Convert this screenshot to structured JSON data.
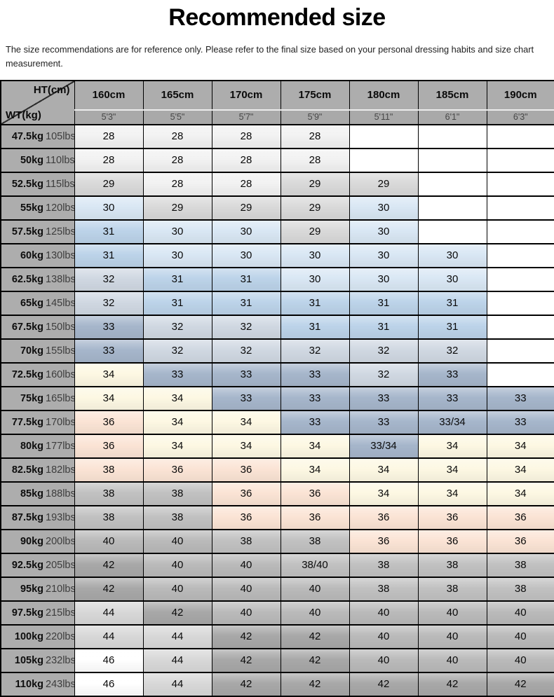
{
  "page": {
    "title": "Recommended size",
    "subtitle": "The size recommendations are for reference only. Please refer to the final size based on your personal dressing habits and size chart measurement."
  },
  "corner": {
    "top": "HT(cm)",
    "bottom": "WT(kg)"
  },
  "palette": {
    "s28": "#f2f2f2",
    "s29": "#d9d9d9",
    "s30": "#d9e7f4",
    "s31": "#bcd3e9",
    "s32": "#d0d8e2",
    "s33": "#a6b6cb",
    "s34": "#fdf8e3",
    "s36": "#fbe4d5",
    "g38": "#c1c1c1",
    "g40": "#bababa",
    "g42": "#a8a8a8",
    "g44": "#d8d8d8",
    "s46": "#ffffff",
    "header_gray": "#adadad"
  },
  "chart_data": {
    "type": "table",
    "title": "Recommended size",
    "columns_axis_label": "HT(cm)",
    "rows_axis_label": "WT(kg)",
    "height_headers_cm": [
      "160cm",
      "165cm",
      "170cm",
      "175cm",
      "180cm",
      "185cm",
      "190cm"
    ],
    "height_headers_ft": [
      "5'3\"",
      "5'5\"",
      "5'7\"",
      "5'9\"",
      "5'11\"",
      "6'1\"",
      "6'3\""
    ],
    "weight_rows": [
      {
        "kg": "47.5kg",
        "lbs": "105lbs",
        "sizes": [
          "28",
          "28",
          "28",
          "28",
          "",
          "",
          ""
        ],
        "colors": [
          "s28",
          "s28",
          "s28",
          "s28",
          "",
          "",
          ""
        ]
      },
      {
        "kg": "50kg",
        "lbs": "110lbs",
        "sizes": [
          "28",
          "28",
          "28",
          "28",
          "",
          "",
          ""
        ],
        "colors": [
          "s28",
          "s28",
          "s28",
          "s28",
          "",
          "",
          ""
        ]
      },
      {
        "kg": "52.5kg",
        "lbs": "115lbs",
        "sizes": [
          "29",
          "28",
          "28",
          "29",
          "29",
          "",
          ""
        ],
        "colors": [
          "s29",
          "s28",
          "s28",
          "s29",
          "s29",
          "",
          ""
        ]
      },
      {
        "kg": "55kg",
        "lbs": "120lbs",
        "sizes": [
          "30",
          "29",
          "29",
          "29",
          "30",
          "",
          ""
        ],
        "colors": [
          "s30",
          "s29",
          "s29",
          "s29",
          "s30",
          "",
          ""
        ]
      },
      {
        "kg": "57.5kg",
        "lbs": "125lbs",
        "sizes": [
          "31",
          "30",
          "30",
          "29",
          "30",
          "",
          ""
        ],
        "colors": [
          "s31",
          "s30",
          "s30",
          "s29",
          "s30",
          "",
          ""
        ]
      },
      {
        "kg": "60kg",
        "lbs": "130lbs",
        "sizes": [
          "31",
          "30",
          "30",
          "30",
          "30",
          "30",
          ""
        ],
        "colors": [
          "s31",
          "s30",
          "s30",
          "s30",
          "s30",
          "s30",
          ""
        ]
      },
      {
        "kg": "62.5kg",
        "lbs": "138lbs",
        "sizes": [
          "32",
          "31",
          "31",
          "30",
          "30",
          "30",
          ""
        ],
        "colors": [
          "s32",
          "s31",
          "s31",
          "s30",
          "s30",
          "s30",
          ""
        ]
      },
      {
        "kg": "65kg",
        "lbs": "145lbs",
        "sizes": [
          "32",
          "31",
          "31",
          "31",
          "31",
          "31",
          ""
        ],
        "colors": [
          "s32",
          "s31",
          "s31",
          "s31",
          "s31",
          "s31",
          ""
        ]
      },
      {
        "kg": "67.5kg",
        "lbs": "150lbs",
        "sizes": [
          "33",
          "32",
          "32",
          "31",
          "31",
          "31",
          ""
        ],
        "colors": [
          "s33",
          "s32",
          "s32",
          "s31",
          "s31",
          "s31",
          ""
        ]
      },
      {
        "kg": "70kg",
        "lbs": "155lbs",
        "sizes": [
          "33",
          "32",
          "32",
          "32",
          "32",
          "32",
          ""
        ],
        "colors": [
          "s33",
          "s32",
          "s32",
          "s32",
          "s32",
          "s32",
          ""
        ]
      },
      {
        "kg": "72.5kg",
        "lbs": "160lbs",
        "sizes": [
          "34",
          "33",
          "33",
          "33",
          "32",
          "33",
          ""
        ],
        "colors": [
          "s34",
          "s33",
          "s33",
          "s33",
          "s32",
          "s33",
          ""
        ]
      },
      {
        "kg": "75kg",
        "lbs": "165lbs",
        "sizes": [
          "34",
          "34",
          "33",
          "33",
          "33",
          "33",
          "33"
        ],
        "colors": [
          "s34",
          "s34",
          "s33",
          "s33",
          "s33",
          "s33",
          "s33"
        ]
      },
      {
        "kg": "77.5kg",
        "lbs": "170lbs",
        "sizes": [
          "36",
          "34",
          "34",
          "33",
          "33",
          "33/34",
          "33"
        ],
        "colors": [
          "s36",
          "s34",
          "s34",
          "s33",
          "s33",
          "s33",
          "s33"
        ]
      },
      {
        "kg": "80kg",
        "lbs": "177lbs",
        "sizes": [
          "36",
          "34",
          "34",
          "34",
          "33/34",
          "34",
          "34"
        ],
        "colors": [
          "s36",
          "s34",
          "s34",
          "s34",
          "s33",
          "s34",
          "s34"
        ]
      },
      {
        "kg": "82.5kg",
        "lbs": "182lbs",
        "sizes": [
          "38",
          "36",
          "36",
          "34",
          "34",
          "34",
          "34"
        ],
        "colors": [
          "s36",
          "s36",
          "s36",
          "s34",
          "s34",
          "s34",
          "s34"
        ]
      },
      {
        "kg": "85kg",
        "lbs": "188lbs",
        "sizes": [
          "38",
          "38",
          "36",
          "36",
          "34",
          "34",
          "34"
        ],
        "colors": [
          "g38",
          "g38",
          "s36",
          "s36",
          "s34",
          "s34",
          "s34"
        ]
      },
      {
        "kg": "87.5kg",
        "lbs": "193lbs",
        "sizes": [
          "38",
          "38",
          "36",
          "36",
          "36",
          "36",
          "36"
        ],
        "colors": [
          "g38",
          "g38",
          "s36",
          "s36",
          "s36",
          "s36",
          "s36"
        ]
      },
      {
        "kg": "90kg",
        "lbs": "200lbs",
        "sizes": [
          "40",
          "40",
          "38",
          "38",
          "36",
          "36",
          "36"
        ],
        "colors": [
          "g40",
          "g40",
          "g38",
          "g38",
          "s36",
          "s36",
          "s36"
        ]
      },
      {
        "kg": "92.5kg",
        "lbs": "205lbs",
        "sizes": [
          "42",
          "40",
          "40",
          "38/40",
          "38",
          "38",
          "38"
        ],
        "colors": [
          "g42",
          "g40",
          "g40",
          "g38",
          "g38",
          "g38",
          "g38"
        ]
      },
      {
        "kg": "95kg",
        "lbs": "210lbs",
        "sizes": [
          "42",
          "40",
          "40",
          "40",
          "38",
          "38",
          "38"
        ],
        "colors": [
          "g42",
          "g40",
          "g40",
          "g40",
          "g38",
          "g38",
          "g38"
        ]
      },
      {
        "kg": "97.5kg",
        "lbs": "215lbs",
        "sizes": [
          "44",
          "42",
          "40",
          "40",
          "40",
          "40",
          "40"
        ],
        "colors": [
          "g44",
          "g42",
          "g40",
          "g40",
          "g40",
          "g40",
          "g40"
        ]
      },
      {
        "kg": "100kg",
        "lbs": "220lbs",
        "sizes": [
          "44",
          "44",
          "42",
          "42",
          "40",
          "40",
          "40"
        ],
        "colors": [
          "g44",
          "g44",
          "g42",
          "g42",
          "g40",
          "g40",
          "g40"
        ]
      },
      {
        "kg": "105kg",
        "lbs": "232lbs",
        "sizes": [
          "46",
          "44",
          "42",
          "42",
          "40",
          "40",
          "40"
        ],
        "colors": [
          "s46",
          "g44",
          "g42",
          "g42",
          "g40",
          "g40",
          "g40"
        ]
      },
      {
        "kg": "110kg",
        "lbs": "243lbs",
        "sizes": [
          "46",
          "44",
          "42",
          "42",
          "42",
          "42",
          "42"
        ],
        "colors": [
          "s46",
          "g44",
          "g42",
          "g42",
          "g42",
          "g42",
          "g42"
        ]
      }
    ]
  }
}
